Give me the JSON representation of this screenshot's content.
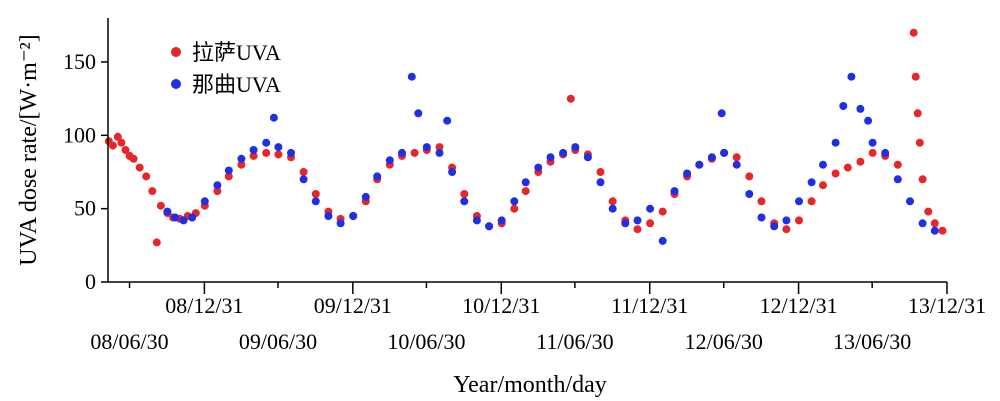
{
  "chart_data": {
    "type": "scatter",
    "xlabel": "Year/month/day",
    "ylabel": "UVA dose rate/[W·m⁻²]",
    "ylim": [
      0,
      180
    ],
    "yticks": [
      0,
      50,
      100,
      150
    ],
    "xlim": [
      "2008-05-08",
      "2013-12-31"
    ],
    "xticks_upper": [
      "08/12/31",
      "09/12/31",
      "10/12/31",
      "11/12/31",
      "12/12/31",
      "13/12/31"
    ],
    "xticks_lower": [
      "08/06/30",
      "09/06/30",
      "10/06/30",
      "11/06/30",
      "12/06/30",
      "13/06/30"
    ],
    "legend_position": "top-left",
    "colors": {
      "lhasa": "#e8262a",
      "nagqu": "#1f2fe6"
    },
    "series": [
      {
        "name": "拉萨UVA",
        "color": "#e8262a",
        "points": [
          [
            "2008-05-10",
            96
          ],
          [
            "2008-05-20",
            93
          ],
          [
            "2008-06-01",
            99
          ],
          [
            "2008-06-10",
            95
          ],
          [
            "2008-06-20",
            90
          ],
          [
            "2008-06-30",
            86
          ],
          [
            "2008-07-10",
            84
          ],
          [
            "2008-07-25",
            78
          ],
          [
            "2008-08-10",
            72
          ],
          [
            "2008-08-25",
            62
          ],
          [
            "2008-09-05",
            27
          ],
          [
            "2008-09-15",
            52
          ],
          [
            "2008-10-01",
            47
          ],
          [
            "2008-10-15",
            44
          ],
          [
            "2008-11-01",
            43
          ],
          [
            "2008-11-20",
            45
          ],
          [
            "2008-12-10",
            47
          ],
          [
            "2009-01-01",
            52
          ],
          [
            "2009-02-01",
            62
          ],
          [
            "2009-03-01",
            72
          ],
          [
            "2009-04-01",
            80
          ],
          [
            "2009-05-01",
            86
          ],
          [
            "2009-06-01",
            88
          ],
          [
            "2009-07-01",
            87
          ],
          [
            "2009-08-01",
            85
          ],
          [
            "2009-09-01",
            75
          ],
          [
            "2009-10-01",
            60
          ],
          [
            "2009-11-01",
            48
          ],
          [
            "2009-12-01",
            43
          ],
          [
            "2010-01-01",
            45
          ],
          [
            "2010-02-01",
            55
          ],
          [
            "2010-03-01",
            70
          ],
          [
            "2010-04-01",
            80
          ],
          [
            "2010-05-01",
            86
          ],
          [
            "2010-06-01",
            88
          ],
          [
            "2010-07-01",
            90
          ],
          [
            "2010-08-01",
            92
          ],
          [
            "2010-09-01",
            78
          ],
          [
            "2010-10-01",
            60
          ],
          [
            "2010-11-01",
            45
          ],
          [
            "2010-12-01",
            38
          ],
          [
            "2011-01-01",
            40
          ],
          [
            "2011-02-01",
            50
          ],
          [
            "2011-03-01",
            62
          ],
          [
            "2011-04-01",
            75
          ],
          [
            "2011-05-01",
            82
          ],
          [
            "2011-06-01",
            87
          ],
          [
            "2011-06-20",
            125
          ],
          [
            "2011-07-01",
            90
          ],
          [
            "2011-08-01",
            87
          ],
          [
            "2011-09-01",
            75
          ],
          [
            "2011-10-01",
            55
          ],
          [
            "2011-11-01",
            42
          ],
          [
            "2011-12-01",
            36
          ],
          [
            "2012-01-01",
            40
          ],
          [
            "2012-02-01",
            48
          ],
          [
            "2012-03-01",
            60
          ],
          [
            "2012-04-01",
            72
          ],
          [
            "2012-05-01",
            80
          ],
          [
            "2012-06-01",
            84
          ],
          [
            "2012-07-01",
            88
          ],
          [
            "2012-08-01",
            85
          ],
          [
            "2012-09-01",
            72
          ],
          [
            "2012-10-01",
            55
          ],
          [
            "2012-11-01",
            40
          ],
          [
            "2012-12-01",
            36
          ],
          [
            "2013-01-01",
            42
          ],
          [
            "2013-02-01",
            55
          ],
          [
            "2013-03-01",
            66
          ],
          [
            "2013-04-01",
            74
          ],
          [
            "2013-05-01",
            78
          ],
          [
            "2013-06-01",
            82
          ],
          [
            "2013-07-01",
            88
          ],
          [
            "2013-08-01",
            86
          ],
          [
            "2013-09-01",
            80
          ],
          [
            "2013-10-10",
            170
          ],
          [
            "2013-10-15",
            140
          ],
          [
            "2013-10-20",
            115
          ],
          [
            "2013-10-25",
            95
          ],
          [
            "2013-11-01",
            70
          ],
          [
            "2013-11-15",
            48
          ],
          [
            "2013-12-01",
            40
          ],
          [
            "2013-12-20",
            35
          ]
        ]
      },
      {
        "name": "那曲UVA",
        "color": "#1f2fe6",
        "points": [
          [
            "2008-10-01",
            48
          ],
          [
            "2008-10-20",
            44
          ],
          [
            "2008-11-10",
            42
          ],
          [
            "2008-12-01",
            44
          ],
          [
            "2009-01-01",
            55
          ],
          [
            "2009-02-01",
            66
          ],
          [
            "2009-03-01",
            76
          ],
          [
            "2009-04-01",
            84
          ],
          [
            "2009-05-01",
            90
          ],
          [
            "2009-06-01",
            95
          ],
          [
            "2009-06-20",
            112
          ],
          [
            "2009-07-01",
            92
          ],
          [
            "2009-08-01",
            88
          ],
          [
            "2009-09-01",
            70
          ],
          [
            "2009-10-01",
            55
          ],
          [
            "2009-11-01",
            45
          ],
          [
            "2009-12-01",
            40
          ],
          [
            "2010-01-01",
            45
          ],
          [
            "2010-02-01",
            58
          ],
          [
            "2010-03-01",
            72
          ],
          [
            "2010-04-01",
            83
          ],
          [
            "2010-05-01",
            88
          ],
          [
            "2010-05-25",
            140
          ],
          [
            "2010-06-10",
            115
          ],
          [
            "2010-07-01",
            92
          ],
          [
            "2010-08-01",
            88
          ],
          [
            "2010-08-20",
            110
          ],
          [
            "2010-09-01",
            75
          ],
          [
            "2010-10-01",
            55
          ],
          [
            "2010-11-01",
            42
          ],
          [
            "2010-12-01",
            38
          ],
          [
            "2011-01-01",
            42
          ],
          [
            "2011-02-01",
            55
          ],
          [
            "2011-03-01",
            68
          ],
          [
            "2011-04-01",
            78
          ],
          [
            "2011-05-01",
            85
          ],
          [
            "2011-06-01",
            88
          ],
          [
            "2011-07-01",
            92
          ],
          [
            "2011-08-01",
            85
          ],
          [
            "2011-09-01",
            68
          ],
          [
            "2011-10-01",
            50
          ],
          [
            "2011-11-01",
            40
          ],
          [
            "2011-12-01",
            42
          ],
          [
            "2012-01-01",
            50
          ],
          [
            "2012-02-01",
            28
          ],
          [
            "2012-03-01",
            62
          ],
          [
            "2012-04-01",
            74
          ],
          [
            "2012-05-01",
            80
          ],
          [
            "2012-06-01",
            85
          ],
          [
            "2012-06-25",
            115
          ],
          [
            "2012-07-01",
            88
          ],
          [
            "2012-08-01",
            80
          ],
          [
            "2012-09-01",
            60
          ],
          [
            "2012-10-01",
            44
          ],
          [
            "2012-11-01",
            38
          ],
          [
            "2012-12-01",
            42
          ],
          [
            "2013-01-01",
            55
          ],
          [
            "2013-02-01",
            68
          ],
          [
            "2013-03-01",
            80
          ],
          [
            "2013-04-01",
            95
          ],
          [
            "2013-04-20",
            120
          ],
          [
            "2013-05-10",
            140
          ],
          [
            "2013-06-01",
            118
          ],
          [
            "2013-06-20",
            110
          ],
          [
            "2013-07-01",
            95
          ],
          [
            "2013-08-01",
            88
          ],
          [
            "2013-09-01",
            70
          ],
          [
            "2013-10-01",
            55
          ],
          [
            "2013-11-01",
            40
          ],
          [
            "2013-12-01",
            35
          ]
        ]
      }
    ]
  }
}
